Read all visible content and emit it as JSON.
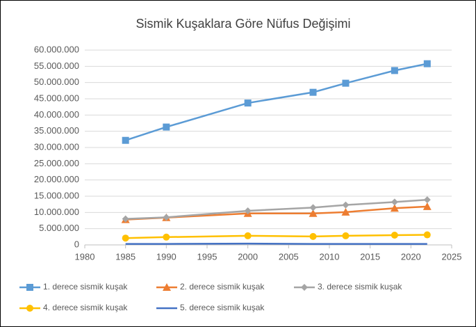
{
  "chart_data": {
    "type": "line",
    "title": "Sismik Kuşaklara Göre Nüfus Değişimi",
    "x": [
      1985,
      1990,
      2000,
      2008,
      2012,
      2018,
      2022
    ],
    "series": [
      {
        "name": "1. derece sismik kuşak",
        "color": "#5b9bd5",
        "marker": "square",
        "values": [
          32200000,
          36300000,
          43700000,
          47000000,
          49800000,
          53700000,
          55800000
        ]
      },
      {
        "name": "2. derece sismik kuşak",
        "color": "#ed7d31",
        "marker": "triangle",
        "values": [
          7800000,
          8400000,
          9700000,
          9700000,
          10100000,
          11300000,
          11800000
        ]
      },
      {
        "name": "3. derece sismik kuşak",
        "color": "#a5a5a5",
        "marker": "diamond",
        "values": [
          8000000,
          8500000,
          10500000,
          11500000,
          12300000,
          13200000,
          13900000
        ]
      },
      {
        "name": "4. derece sismik kuşak",
        "color": "#ffc000",
        "marker": "circle",
        "values": [
          2100000,
          2400000,
          2800000,
          2600000,
          2800000,
          3000000,
          3100000
        ]
      },
      {
        "name": "5. derece sismik kuşak",
        "color": "#4472c4",
        "marker": "none",
        "values": [
          300000,
          300000,
          400000,
          300000,
          300000,
          300000,
          300000
        ]
      }
    ],
    "xlim": [
      1980,
      2025
    ],
    "xticks": [
      1980,
      1985,
      1990,
      1995,
      2000,
      2005,
      2010,
      2015,
      2020,
      2025
    ],
    "ylim": [
      0,
      60000000
    ],
    "yticks": [
      0,
      {
        "value": 5000000,
        "label": "5.000.000"
      },
      {
        "value": 10000000,
        "label": "10.000.000"
      },
      {
        "value": 15000000,
        "label": "15.000.000"
      },
      {
        "value": 20000000,
        "label": "20.000.000"
      },
      {
        "value": 25000000,
        "label": "25.000.000"
      },
      {
        "value": 30000000,
        "label": "30.000.000"
      },
      {
        "value": 35000000,
        "label": "35.000.000"
      },
      {
        "value": 40000000,
        "label": "40.000.000"
      },
      {
        "value": 45000000,
        "label": "45.000.000"
      },
      {
        "value": 50000000,
        "label": "50.000.000"
      },
      {
        "value": 55000000,
        "label": "55.000.000"
      },
      {
        "value": 60000000,
        "label": "60.000.000"
      }
    ],
    "grid": true
  }
}
